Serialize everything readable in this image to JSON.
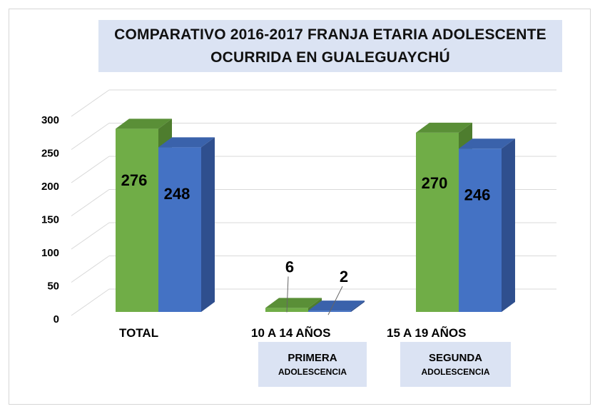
{
  "chart_data": {
    "type": "bar",
    "title_lines": [
      "COMPARATIVO 2016-2017 FRANJA ETARIA ADOLESCENTE",
      "OCURRIDA EN GUALEGUAYCHÚ"
    ],
    "categories": [
      "TOTAL",
      "10 A 14 AÑOS",
      "15 A 19 AÑOS"
    ],
    "series": [
      {
        "values": [
          276,
          6,
          270
        ],
        "color": "#70ad47"
      },
      {
        "values": [
          248,
          2,
          246
        ],
        "color": "#4472c4"
      }
    ],
    "yticks": [
      0,
      50,
      100,
      150,
      200,
      250,
      300
    ],
    "ylim": [
      0,
      300
    ],
    "grid": true,
    "legend": "none",
    "three_d": true
  },
  "subcategory_boxes": [
    {
      "line1": "PRIMERA",
      "line2": "ADOLESCENCIA"
    },
    {
      "line1": "SEGUNDA",
      "line2": "ADOLESCENCIA"
    }
  ]
}
